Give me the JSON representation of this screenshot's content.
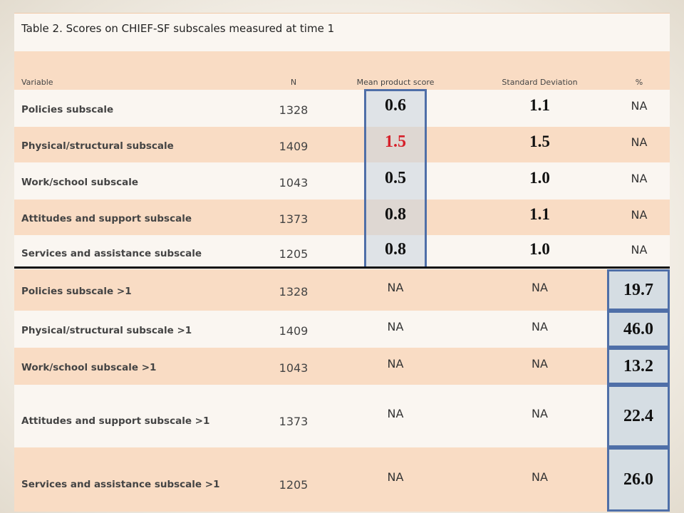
{
  "table": {
    "title": "Table 2. Scores on CHIEF-SF subscales measured at time 1",
    "header": [
      "Variable",
      "N",
      "Mean product score",
      "Standard Deviation",
      "%"
    ],
    "rows": [
      [
        "Policies subscale",
        "1328",
        "0.6",
        "1.1",
        "NA"
      ],
      [
        "Physical/structural subscale",
        "1409",
        "1.5",
        "1.5",
        "NA"
      ],
      [
        "Work/school subscale",
        "1043",
        "0.5",
        "1.0",
        "NA"
      ],
      [
        "Attitudes and support subscale",
        "1373",
        "0.8",
        "1.1",
        "NA"
      ],
      [
        "Services and assistance subscale",
        "1205",
        "0.8",
        "1.0",
        "NA"
      ],
      [
        "Policies subscale >1",
        "1328",
        "NA",
        "NA",
        "19.7"
      ],
      [
        "Physical/structural subscale >1",
        "1409",
        "NA",
        "NA",
        "46.0"
      ],
      [
        "Work/school subscale >1",
        "1043",
        "NA",
        "NA",
        "13.2"
      ],
      [
        "Attitudes and support subscale >1",
        "1373",
        "NA",
        "NA",
        "22.4"
      ],
      [
        "Services and assistance subscale >1",
        "1205",
        "NA",
        "NA",
        "26.0"
      ]
    ]
  }
}
